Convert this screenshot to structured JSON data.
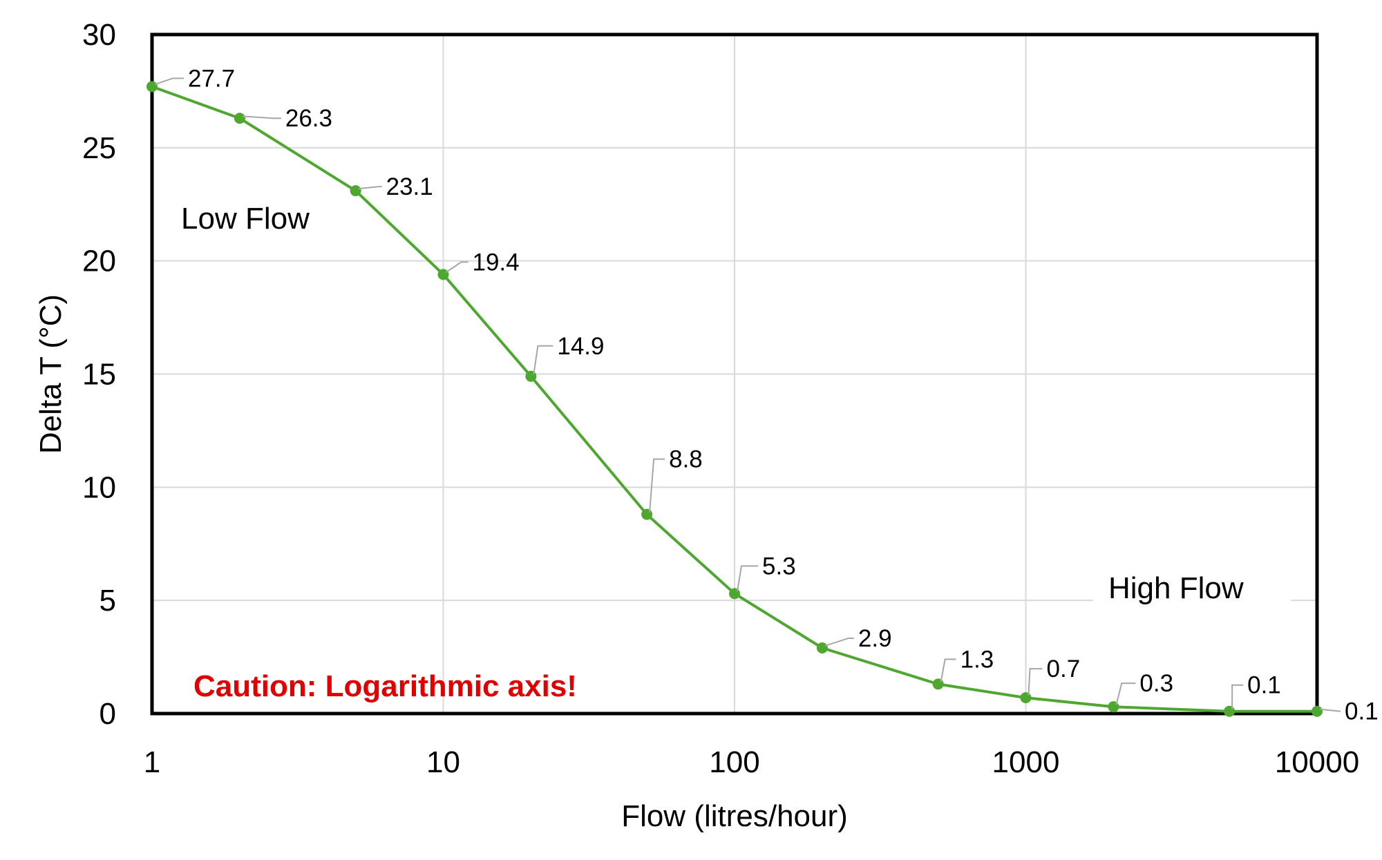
{
  "chart_data": {
    "type": "line",
    "x_scale": "log",
    "xlabel": "Flow (litres/hour)",
    "ylabel": "Delta T (°C)",
    "xlim": [
      1,
      10000
    ],
    "ylim": [
      0,
      30
    ],
    "x_ticks": [
      "1",
      "10",
      "100",
      "1000",
      "10000"
    ],
    "y_ticks": [
      "0",
      "5",
      "10",
      "15",
      "20",
      "25",
      "30"
    ],
    "grid": true,
    "legend": "none",
    "series": [
      {
        "color": "#4ea72e",
        "points": [
          {
            "x": 1,
            "y": 27.7,
            "label": "27.7"
          },
          {
            "x": 2,
            "y": 26.3,
            "label": "26.3"
          },
          {
            "x": 5,
            "y": 23.1,
            "label": "23.1"
          },
          {
            "x": 10,
            "y": 19.4,
            "label": "19.4"
          },
          {
            "x": 20,
            "y": 14.9,
            "label": "14.9"
          },
          {
            "x": 50,
            "y": 8.8,
            "label": "8.8"
          },
          {
            "x": 100,
            "y": 5.3,
            "label": "5.3"
          },
          {
            "x": 200,
            "y": 2.9,
            "label": "2.9"
          },
          {
            "x": 500,
            "y": 1.3,
            "label": "1.3"
          },
          {
            "x": 1000,
            "y": 0.7,
            "label": "0.7"
          },
          {
            "x": 2000,
            "y": 0.3,
            "label": "0.3"
          },
          {
            "x": 5000,
            "y": 0.1,
            "label": "0.1"
          },
          {
            "x": 10000,
            "y": 0.1,
            "label": "0.1"
          }
        ]
      }
    ],
    "annotations": {
      "low_flow": "Low Flow",
      "high_flow": "High Flow",
      "caution": "Caution: Logarithmic axis!"
    }
  }
}
